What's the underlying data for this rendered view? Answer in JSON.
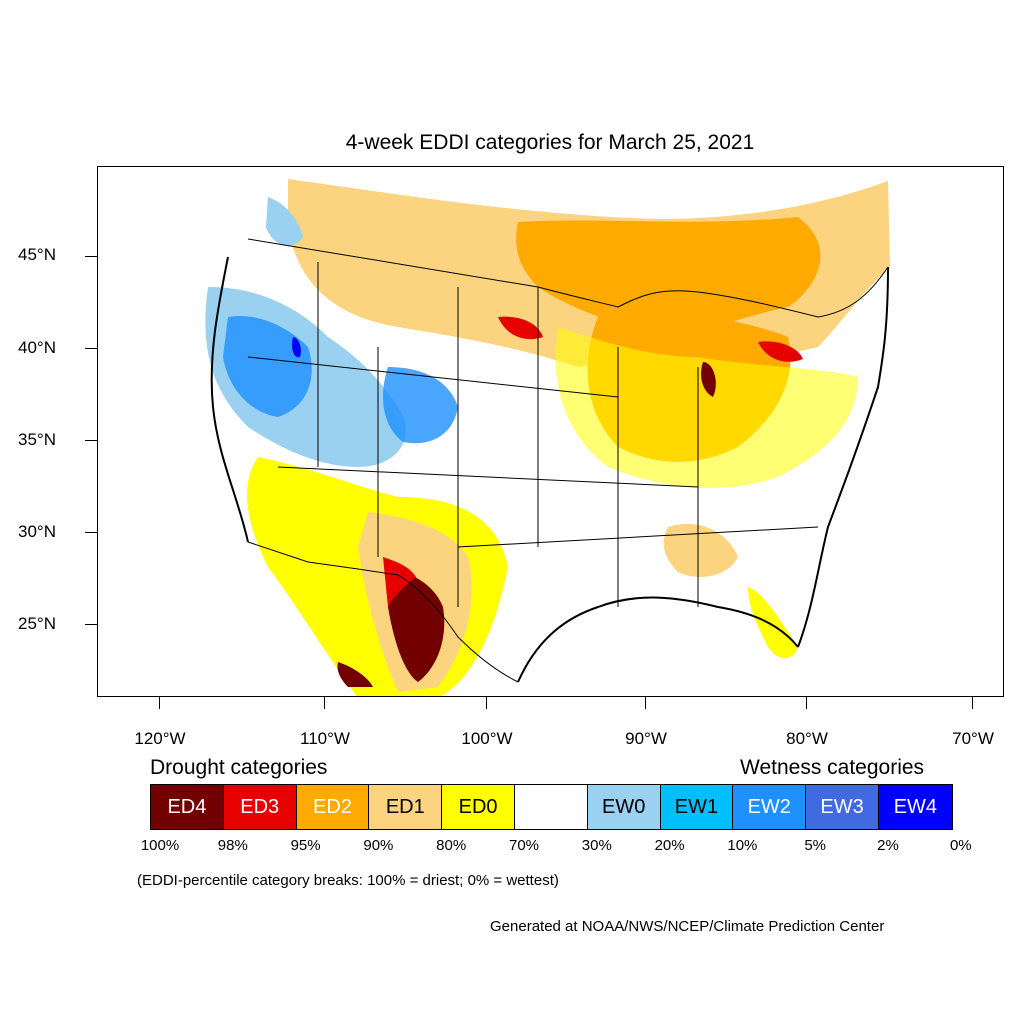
{
  "title": "4-week EDDI categories for March 25, 2021",
  "latitude_labels": [
    "45°N",
    "40°N",
    "35°N",
    "30°N",
    "25°N"
  ],
  "longitude_labels": [
    "120°W",
    "110°W",
    "100°W",
    "90°W",
    "80°W",
    "70°W"
  ],
  "legend": {
    "drought_heading": "Drought categories",
    "wetness_heading": "Wetness categories",
    "categories": [
      {
        "label": "ED4",
        "color": "#730000",
        "text_color": "#ffffff"
      },
      {
        "label": "ED3",
        "color": "#e60000",
        "text_color": "#ffffff"
      },
      {
        "label": "ED2",
        "color": "#ffaa00",
        "text_color": "#ffffff"
      },
      {
        "label": "ED1",
        "color": "#fcd37f",
        "text_color": "#000000"
      },
      {
        "label": "ED0",
        "color": "#ffff00",
        "text_color": "#000000"
      },
      {
        "label": "",
        "color": "#ffffff",
        "text_color": "#000000"
      },
      {
        "label": "EW0",
        "color": "#9ad0f0",
        "text_color": "#000000"
      },
      {
        "label": "EW1",
        "color": "#00bfff",
        "text_color": "#000000"
      },
      {
        "label": "EW2",
        "color": "#1e90ff",
        "text_color": "#ffffff"
      },
      {
        "label": "EW3",
        "color": "#4169e1",
        "text_color": "#ffffff"
      },
      {
        "label": "EW4",
        "color": "#0000ff",
        "text_color": "#ffffff"
      }
    ],
    "percentile_breaks": [
      "100%",
      "98%",
      "95%",
      "90%",
      "80%",
      "70%",
      "30%",
      "20%",
      "10%",
      "5%",
      "2%",
      "0%"
    ]
  },
  "note": "(EDDI-percentile category breaks: 100% = driest; 0% = wettest)",
  "credit": "Generated at NOAA/NWS/NCEP/Climate Prediction Center"
}
